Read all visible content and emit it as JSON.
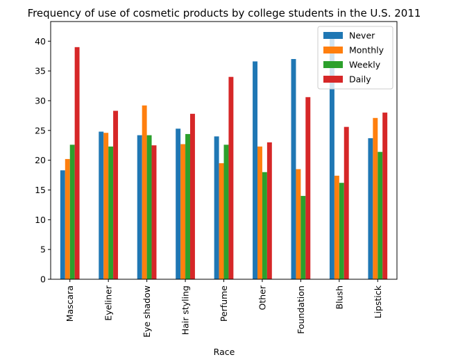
{
  "chart_data": {
    "type": "bar",
    "title": "Frequency of use of cosmetic products by college students in the U.S. 2011",
    "xlabel": "Race",
    "ylabel": "",
    "ylim": [
      0,
      43.3
    ],
    "yticks": [
      0,
      5,
      10,
      15,
      20,
      25,
      30,
      35,
      40
    ],
    "categories": [
      "Mascara",
      "Eyeliner",
      "Eye shadow",
      "Hair styling",
      "Perfume",
      "Other",
      "Foundation",
      "Blush",
      "Lipstick"
    ],
    "series": [
      {
        "name": "Never",
        "color": "#1f77b4",
        "values": [
          18.3,
          24.8,
          24.2,
          25.3,
          24.0,
          36.6,
          37.0,
          41.0,
          23.7
        ]
      },
      {
        "name": "Monthly",
        "color": "#ff7f0e",
        "values": [
          20.2,
          24.6,
          29.2,
          22.7,
          19.5,
          22.3,
          18.5,
          17.4,
          27.1
        ]
      },
      {
        "name": "Weekly",
        "color": "#2ca02c",
        "values": [
          22.6,
          22.3,
          24.2,
          24.4,
          22.6,
          18.0,
          14.0,
          16.2,
          21.4
        ]
      },
      {
        "name": "Daily",
        "color": "#d62728",
        "values": [
          39.0,
          28.3,
          22.5,
          27.8,
          34.0,
          23.0,
          30.6,
          25.6,
          28.0
        ]
      }
    ],
    "legend_position": "top-right",
    "grid": false
  }
}
